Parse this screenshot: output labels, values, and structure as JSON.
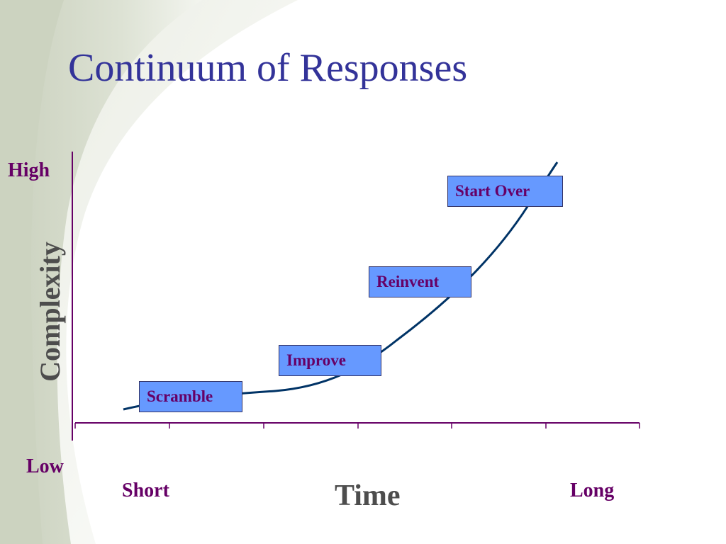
{
  "slide": {
    "title": "Continuum of Responses"
  },
  "y_axis": {
    "label": "Complexity",
    "high_label": "High",
    "low_label": "Low"
  },
  "x_axis": {
    "label": "Time",
    "start_label": "Short",
    "end_label": "Long"
  },
  "stages": [
    {
      "label": "Scramble"
    },
    {
      "label": "Improve"
    },
    {
      "label": "Reinvent"
    },
    {
      "label": "Start Over"
    }
  ],
  "colors": {
    "title": "#333399",
    "end_labels": "#660066",
    "axis_titles": "#4d4d4d",
    "axis_lines": "#660066",
    "curve": "#003366",
    "box_fill": "#6699ff",
    "box_border": "#333366",
    "background_swoosh": "#d2d8c6"
  }
}
